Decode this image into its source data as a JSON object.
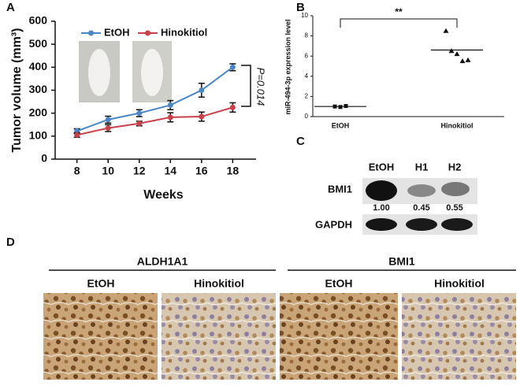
{
  "chart_data": [
    {
      "type": "line",
      "panel": "A",
      "xlabel": "Weeks",
      "ylabel": "Tumor volume (mm³)",
      "x": [
        8,
        10,
        12,
        14,
        16,
        18
      ],
      "series": [
        {
          "name": "EtOH",
          "color": "#4a86c8",
          "values": [
            122,
            172,
            200,
            235,
            300,
            400
          ],
          "errors": [
            10,
            15,
            15,
            20,
            30,
            15
          ]
        },
        {
          "name": "Hinokitiol",
          "color": "#c8414b",
          "values": [
            105,
            135,
            155,
            182,
            185,
            225
          ],
          "errors": [
            10,
            15,
            10,
            20,
            20,
            20
          ]
        }
      ],
      "xlim": [
        6.6,
        19.5
      ],
      "xticks": [
        8,
        10,
        12,
        14,
        16,
        18
      ],
      "ylim": [
        0,
        600
      ],
      "yticks": [
        0,
        100,
        200,
        300,
        400,
        500,
        600
      ],
      "annotation": "P=0.014"
    },
    {
      "type": "dot",
      "panel": "B",
      "ylabel": "miR-494-3p expression level",
      "categories": [
        "EtOH",
        "Hinokitiol"
      ],
      "points": [
        [
          1.0,
          0.95,
          1.05
        ],
        [
          8.5,
          6.5,
          6.2,
          5.5,
          5.6
        ]
      ],
      "means": [
        1.0,
        6.6
      ],
      "ylim": [
        0,
        10
      ],
      "yticks": [
        0,
        2,
        4,
        6,
        8,
        10
      ],
      "annotation": "**"
    }
  ],
  "blot": {
    "panel": "C",
    "lanes": [
      "EtOH",
      "H1",
      "H2"
    ],
    "rows": [
      "BMI1",
      "GAPDH"
    ],
    "quantities": [
      "1.00",
      "0.45",
      "0.55"
    ]
  },
  "histology": {
    "panel": "D",
    "groups": [
      "ALDH1A1",
      "BMI1"
    ],
    "conditions": [
      "EtOH",
      "Hinokitiol",
      "EtOH",
      "Hinokitiol"
    ]
  }
}
